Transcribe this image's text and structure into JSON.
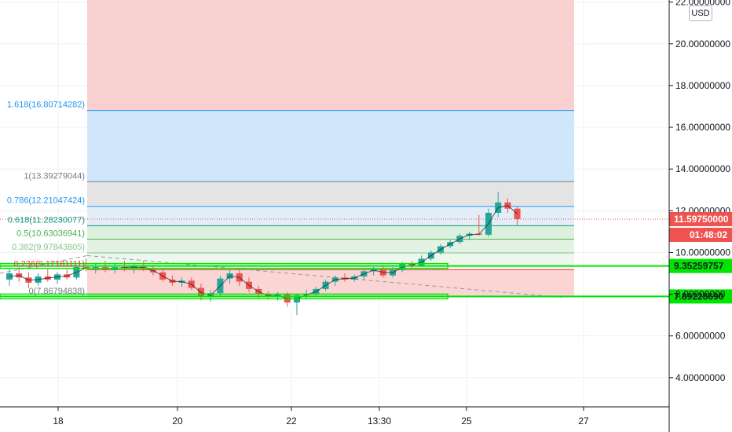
{
  "currency_label": "USD",
  "colors": {
    "up": "#26a69a",
    "down": "#ef5350",
    "grid": "#eef0f3",
    "upper_zone": "#f8d0cf",
    "lower_zone": "#fbd5d4",
    "fib_1618_zone": "#cfe6fb",
    "fib_1_zone": "#e4e4e4",
    "fib_green_zone": "#ddf0dd",
    "level_green": "#00e600",
    "price_tag": "#ef5350"
  },
  "chart_data": {
    "type": "candlestick",
    "y_ticks": [
      "4.00000000",
      "6.00000000",
      "8.00000000",
      "10.00000000",
      "12.00000000",
      "14.00000000",
      "16.00000000",
      "18.00000000",
      "20.00000000",
      "22.00000000"
    ],
    "x_ticks": [
      "18",
      "20",
      "22",
      "13:30",
      "25",
      "27"
    ],
    "ylim": [
      2.6,
      22.1
    ],
    "fib_levels": [
      {
        "ratio": "1.618",
        "value": 16.80714282,
        "label": "1.618(16.80714282)",
        "color": "#2196f3"
      },
      {
        "ratio": "1",
        "value": 13.39279044,
        "label": "1(13.39279044)",
        "color": "#787b86"
      },
      {
        "ratio": "0.786",
        "value": 12.21047424,
        "label": "0.786(12.21047424)",
        "color": "#2196f3"
      },
      {
        "ratio": "0.618",
        "value": 11.28230077,
        "label": "0.618(11.28230077)",
        "color": "#089981"
      },
      {
        "ratio": "0.5",
        "value": 10.63036941,
        "label": "0.5(10.63036941)",
        "color": "#4caf50"
      },
      {
        "ratio": "0.382",
        "value": 9.97843805,
        "label": "0.382(9.97843805)",
        "color": "#81c784"
      },
      {
        "ratio": "0.236",
        "value": 9.17181111,
        "label": "0.236(9.17181111)",
        "color": "#f23645"
      },
      {
        "ratio": "0",
        "value": 7.86794838,
        "label": "0(7.86794838)",
        "color": "#787b86"
      }
    ],
    "horizontal_levels": [
      9.35259757,
      7.8922869
    ],
    "level_labels": [
      "9.35259757",
      "7.89228690"
    ],
    "last_price": "11.59750000",
    "last_price_value": 11.5975,
    "countdown": "01:48:02",
    "candles": [
      {
        "o": 8.7,
        "h": 9.2,
        "l": 8.4,
        "c": 9.0
      },
      {
        "o": 9.0,
        "h": 9.3,
        "l": 8.6,
        "c": 8.8
      },
      {
        "o": 8.8,
        "h": 9.05,
        "l": 8.3,
        "c": 8.55
      },
      {
        "o": 8.55,
        "h": 9.0,
        "l": 8.4,
        "c": 8.85
      },
      {
        "o": 8.85,
        "h": 9.2,
        "l": 8.6,
        "c": 8.7
      },
      {
        "o": 8.7,
        "h": 9.05,
        "l": 8.5,
        "c": 8.95
      },
      {
        "o": 8.95,
        "h": 9.2,
        "l": 8.7,
        "c": 8.8
      },
      {
        "o": 8.8,
        "h": 9.4,
        "l": 8.7,
        "c": 9.3
      },
      {
        "o": 9.3,
        "h": 9.7,
        "l": 9.1,
        "c": 9.2
      },
      {
        "o": 9.2,
        "h": 9.5,
        "l": 9.0,
        "c": 9.3
      },
      {
        "o": 9.3,
        "h": 9.6,
        "l": 9.05,
        "c": 9.15
      },
      {
        "o": 9.15,
        "h": 9.5,
        "l": 9.0,
        "c": 9.3
      },
      {
        "o": 9.3,
        "h": 9.6,
        "l": 9.1,
        "c": 9.25
      },
      {
        "o": 9.25,
        "h": 9.5,
        "l": 9.0,
        "c": 9.35
      },
      {
        "o": 9.35,
        "h": 9.6,
        "l": 9.1,
        "c": 9.2
      },
      {
        "o": 9.2,
        "h": 9.4,
        "l": 8.9,
        "c": 9.05
      },
      {
        "o": 9.05,
        "h": 9.2,
        "l": 8.6,
        "c": 8.7
      },
      {
        "o": 8.7,
        "h": 8.9,
        "l": 8.4,
        "c": 8.55
      },
      {
        "o": 8.55,
        "h": 8.8,
        "l": 8.35,
        "c": 8.65
      },
      {
        "o": 8.65,
        "h": 8.8,
        "l": 8.2,
        "c": 8.3
      },
      {
        "o": 8.3,
        "h": 8.5,
        "l": 7.7,
        "c": 7.85
      },
      {
        "o": 7.85,
        "h": 8.2,
        "l": 7.65,
        "c": 8.05
      },
      {
        "o": 8.05,
        "h": 8.9,
        "l": 7.9,
        "c": 8.75
      },
      {
        "o": 8.75,
        "h": 9.2,
        "l": 8.5,
        "c": 9.0
      },
      {
        "o": 9.0,
        "h": 9.2,
        "l": 8.4,
        "c": 8.6
      },
      {
        "o": 8.6,
        "h": 8.8,
        "l": 8.1,
        "c": 8.25
      },
      {
        "o": 8.25,
        "h": 8.4,
        "l": 7.8,
        "c": 8.0
      },
      {
        "o": 8.0,
        "h": 8.15,
        "l": 7.75,
        "c": 7.85
      },
      {
        "o": 7.85,
        "h": 8.1,
        "l": 7.7,
        "c": 8.0
      },
      {
        "o": 8.0,
        "h": 8.1,
        "l": 7.4,
        "c": 7.6
      },
      {
        "o": 7.6,
        "h": 8.0,
        "l": 7.0,
        "c": 7.95
      },
      {
        "o": 7.95,
        "h": 8.2,
        "l": 7.75,
        "c": 8.0
      },
      {
        "o": 8.0,
        "h": 8.35,
        "l": 7.9,
        "c": 8.25
      },
      {
        "o": 8.25,
        "h": 8.7,
        "l": 8.15,
        "c": 8.6
      },
      {
        "o": 8.6,
        "h": 8.9,
        "l": 8.4,
        "c": 8.8
      },
      {
        "o": 8.8,
        "h": 9.0,
        "l": 8.6,
        "c": 8.7
      },
      {
        "o": 8.7,
        "h": 8.95,
        "l": 8.6,
        "c": 8.85
      },
      {
        "o": 8.85,
        "h": 9.2,
        "l": 8.7,
        "c": 9.1
      },
      {
        "o": 9.1,
        "h": 9.3,
        "l": 8.9,
        "c": 9.2
      },
      {
        "o": 9.2,
        "h": 9.4,
        "l": 8.8,
        "c": 8.9
      },
      {
        "o": 8.9,
        "h": 9.3,
        "l": 8.8,
        "c": 9.15
      },
      {
        "o": 9.15,
        "h": 9.55,
        "l": 9.05,
        "c": 9.45
      },
      {
        "o": 9.45,
        "h": 9.6,
        "l": 9.25,
        "c": 9.35
      },
      {
        "o": 9.35,
        "h": 9.85,
        "l": 9.3,
        "c": 9.7
      },
      {
        "o": 9.7,
        "h": 10.1,
        "l": 9.6,
        "c": 10.0
      },
      {
        "o": 10.0,
        "h": 10.4,
        "l": 9.9,
        "c": 10.3
      },
      {
        "o": 10.3,
        "h": 10.6,
        "l": 10.2,
        "c": 10.5
      },
      {
        "o": 10.5,
        "h": 10.9,
        "l": 10.4,
        "c": 10.8
      },
      {
        "o": 10.8,
        "h": 11.0,
        "l": 10.6,
        "c": 10.9
      },
      {
        "o": 10.9,
        "h": 11.8,
        "l": 10.8,
        "c": 10.85
      },
      {
        "o": 10.85,
        "h": 12.1,
        "l": 10.75,
        "c": 11.9
      },
      {
        "o": 11.9,
        "h": 12.9,
        "l": 11.7,
        "c": 12.4
      },
      {
        "o": 12.4,
        "h": 12.6,
        "l": 11.9,
        "c": 12.1
      },
      {
        "o": 12.1,
        "h": 12.2,
        "l": 11.3,
        "c": 11.6
      }
    ]
  }
}
